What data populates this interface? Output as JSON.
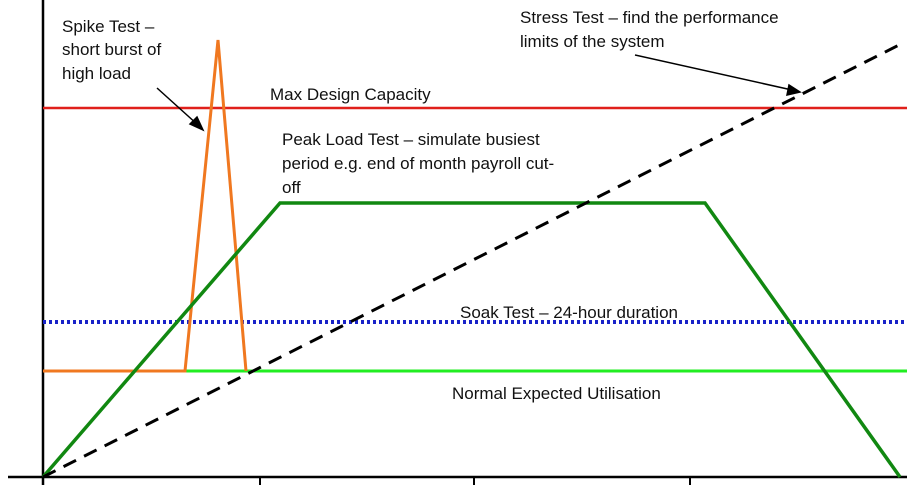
{
  "diagram": {
    "colors": {
      "axis": "#000000",
      "max_capacity": "#e0201b",
      "normal": "#22ee22",
      "peak": "#118811",
      "spike": "#f07820",
      "soak": "#1822c8",
      "stress": "#000000",
      "arrow": "#000000"
    },
    "labels": {
      "spike_line1": "Spike Test –",
      "spike_line2": "short burst of",
      "spike_line3": "high load",
      "stress_line1": "Stress Test – find the performance",
      "stress_line2": "limits of the system",
      "max_capacity": "Max Design Capacity",
      "peak_line1": "Peak Load Test – simulate busiest",
      "peak_line2": "period e.g. end of month payroll cut-",
      "peak_line3": "off",
      "soak": "Soak Test – 24-hour duration",
      "normal": "Normal Expected Utilisation"
    }
  }
}
